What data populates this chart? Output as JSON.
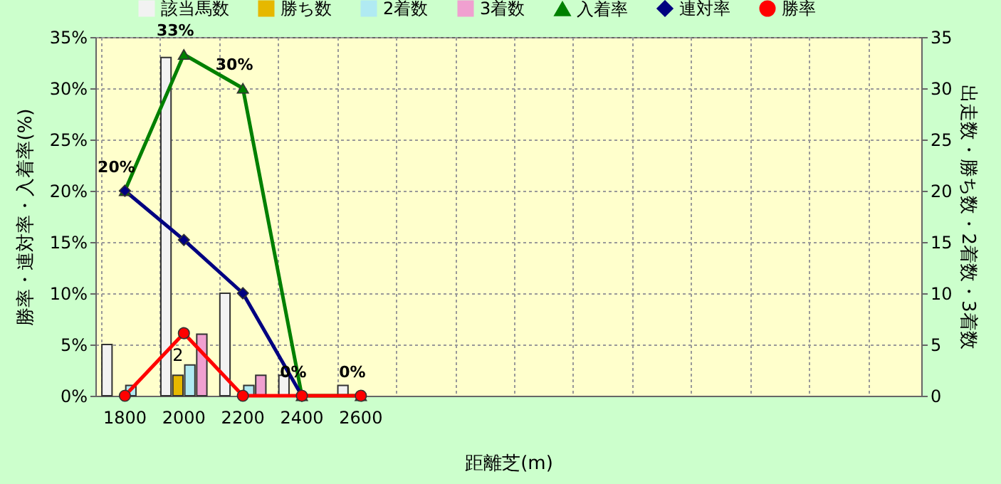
{
  "chart_data": {
    "type": "bar",
    "xlabel": "距離芝(m)",
    "ylabel": "勝率・連対率・入着率(%)",
    "y2label": "出走数・勝ち数・2着数・3着数",
    "categories": [
      "1800",
      "2000",
      "2200",
      "2400",
      "2600",
      null,
      null,
      null,
      null,
      null,
      null,
      null,
      null,
      null
    ],
    "ylim": [
      0,
      35
    ],
    "yticks": [
      {
        "value": 0,
        "label": "0%"
      },
      {
        "value": 5,
        "label": "5%"
      },
      {
        "value": 10,
        "label": "10%"
      },
      {
        "value": 15,
        "label": "15%"
      },
      {
        "value": 20,
        "label": "20%"
      },
      {
        "value": 25,
        "label": "25%"
      },
      {
        "value": 30,
        "label": "30%"
      },
      {
        "value": 35,
        "label": "35%"
      }
    ],
    "y2lim": [
      0,
      35
    ],
    "y2ticks": [
      0,
      5,
      10,
      15,
      20,
      25,
      30,
      35
    ],
    "grid": true,
    "legend": "top",
    "series": [
      {
        "name": "該当馬数",
        "type": "bar",
        "axis": "y2",
        "color": "#f2f2f2",
        "values": [
          5,
          33,
          10,
          2,
          1,
          null,
          null,
          null,
          null,
          null,
          null,
          null,
          null,
          null
        ]
      },
      {
        "name": "勝ち数",
        "type": "bar",
        "axis": "y2",
        "color": "#e6b800",
        "values": [
          0,
          2,
          0,
          0,
          0,
          null,
          null,
          null,
          null,
          null,
          null,
          null,
          null,
          null
        ],
        "value_labels": [
          null,
          "2",
          null,
          null,
          null,
          null,
          null,
          null,
          null,
          null,
          null,
          null,
          null,
          null
        ]
      },
      {
        "name": "2着数",
        "type": "bar",
        "axis": "y2",
        "color": "#b0eaf2",
        "values": [
          1,
          3,
          1,
          0,
          0,
          null,
          null,
          null,
          null,
          null,
          null,
          null,
          null,
          null
        ]
      },
      {
        "name": "3着数",
        "type": "bar",
        "axis": "y2",
        "color": "#f0a0d0",
        "values": [
          0,
          6,
          2,
          0,
          0,
          null,
          null,
          null,
          null,
          null,
          null,
          null,
          null,
          null
        ]
      },
      {
        "name": "入着率",
        "type": "line",
        "color": "#008000",
        "marker": "triangle",
        "line_style": "solid",
        "values": [
          20,
          33.3,
          30,
          0,
          0,
          null,
          null,
          null,
          null,
          null,
          null,
          null,
          null,
          null
        ],
        "value_labels": [
          "20%",
          "33%",
          "30%",
          "0%",
          "0%",
          null,
          null,
          null,
          null,
          null,
          null,
          null,
          null,
          null
        ]
      },
      {
        "name": "連対率",
        "type": "line",
        "color": "#000080",
        "marker": "diamond",
        "line_style": "solid",
        "values": [
          20,
          15.2,
          10,
          0,
          null,
          null,
          null,
          null,
          null,
          null,
          null,
          null,
          null,
          null
        ]
      },
      {
        "name": "勝率",
        "type": "line",
        "color": "#ff0000",
        "marker": "circle",
        "line_style": "solid",
        "values": [
          0,
          6.1,
          0,
          0,
          0,
          null,
          null,
          null,
          null,
          null,
          null,
          null,
          null,
          null
        ]
      }
    ]
  }
}
